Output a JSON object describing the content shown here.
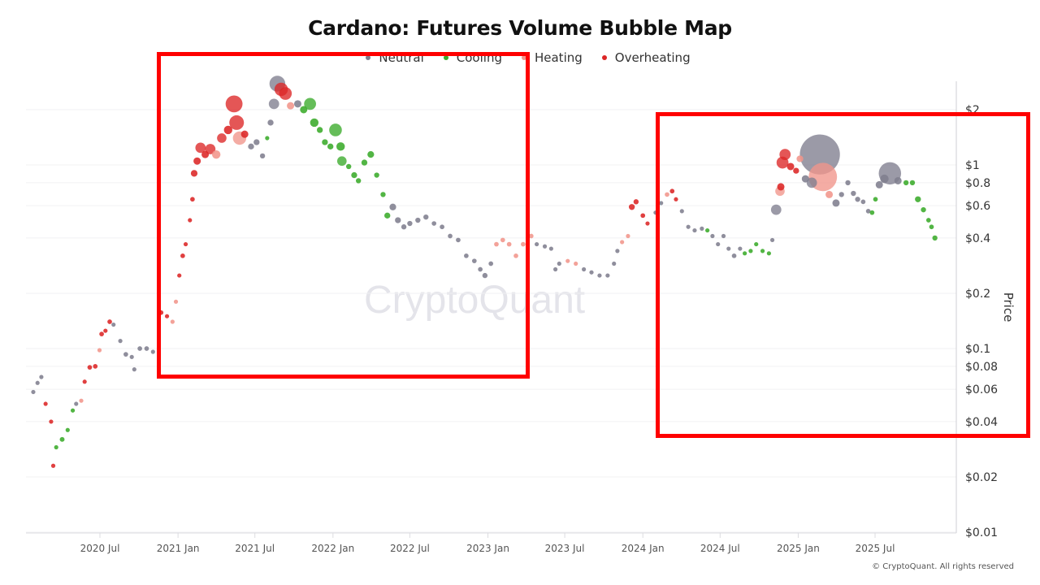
{
  "watermark": "CryptoQuant",
  "copyright": "© CryptoQuant. All rights reserved",
  "colors": {
    "Neutral": "#7f7e8e",
    "Cooling": "#3aab2a",
    "Heating": "#f1958b",
    "Overheating": "#dc2626",
    "highlight": "#ff0000"
  },
  "chart_data": {
    "type": "scatter",
    "title": "Cardano: Futures Volume Bubble Map",
    "ylabel": "Price",
    "xlabel": "",
    "yscale": "log",
    "ylim": [
      0.01,
      2.5
    ],
    "xlim": [
      "2020-01-10",
      "2025-12-20"
    ],
    "grid": "horizontal",
    "legend_position": "top",
    "legend": [
      "Neutral",
      "Cooling",
      "Heating",
      "Overheating"
    ],
    "x_ticks": [
      "2020 Jul",
      "2021 Jan",
      "2021 Jul",
      "2022 Jan",
      "2022 Jul",
      "2023 Jan",
      "2023 Jul",
      "2024 Jan",
      "2024 Jul",
      "2025 Jan",
      "2025 Jul"
    ],
    "x_tick_dates": [
      "2020-07-01",
      "2021-01-01",
      "2021-07-01",
      "2022-01-01",
      "2022-07-01",
      "2023-01-01",
      "2023-07-01",
      "2024-01-01",
      "2024-07-01",
      "2025-01-01",
      "2025-07-01"
    ],
    "y_ticks": [
      "$0.01",
      "$0.02",
      "$0.04",
      "$0.06",
      "$0.08",
      "$0.1",
      "$0.2",
      "$0.4",
      "$0.6",
      "$0.8",
      "$1",
      "$2"
    ],
    "y_tick_values": [
      0.01,
      0.02,
      0.04,
      0.06,
      0.08,
      0.1,
      0.2,
      0.4,
      0.6,
      0.8,
      1,
      2
    ],
    "point_fields": [
      "date",
      "price",
      "status",
      "relative_volume"
    ],
    "points": [
      [
        "2020-01-26",
        0.058,
        "Neutral",
        1
      ],
      [
        "2020-02-05",
        0.065,
        "Neutral",
        1
      ],
      [
        "2020-02-14",
        0.07,
        "Neutral",
        1
      ],
      [
        "2020-02-24",
        0.05,
        "Overheating",
        1
      ],
      [
        "2020-03-08",
        0.04,
        "Overheating",
        1
      ],
      [
        "2020-03-13",
        0.023,
        "Overheating",
        1
      ],
      [
        "2020-03-20",
        0.029,
        "Cooling",
        1
      ],
      [
        "2020-04-03",
        0.032,
        "Cooling",
        1.3
      ],
      [
        "2020-04-16",
        0.036,
        "Cooling",
        1
      ],
      [
        "2020-04-28",
        0.046,
        "Cooling",
        1
      ],
      [
        "2020-05-06",
        0.05,
        "Neutral",
        1
      ],
      [
        "2020-05-18",
        0.052,
        "Heating",
        1
      ],
      [
        "2020-05-26",
        0.066,
        "Overheating",
        1
      ],
      [
        "2020-06-07",
        0.079,
        "Overheating",
        1.2
      ],
      [
        "2020-06-20",
        0.08,
        "Overheating",
        1.2
      ],
      [
        "2020-06-30",
        0.098,
        "Heating",
        1
      ],
      [
        "2020-07-05",
        0.12,
        "Overheating",
        1.2
      ],
      [
        "2020-07-14",
        0.125,
        "Overheating",
        1
      ],
      [
        "2020-07-24",
        0.14,
        "Overheating",
        1.2
      ],
      [
        "2020-08-02",
        0.135,
        "Neutral",
        1
      ],
      [
        "2020-08-18",
        0.11,
        "Neutral",
        1
      ],
      [
        "2020-08-31",
        0.093,
        "Neutral",
        1.2
      ],
      [
        "2020-09-14",
        0.09,
        "Neutral",
        1
      ],
      [
        "2020-09-20",
        0.077,
        "Neutral",
        1
      ],
      [
        "2020-10-03",
        0.1,
        "Neutral",
        1.2
      ],
      [
        "2020-10-19",
        0.1,
        "Neutral",
        1.2
      ],
      [
        "2020-11-03",
        0.096,
        "Neutral",
        1
      ],
      [
        "2020-11-22",
        0.157,
        "Overheating",
        1.2
      ],
      [
        "2020-12-06",
        0.15,
        "Overheating",
        1
      ],
      [
        "2020-12-19",
        0.14,
        "Heating",
        1
      ],
      [
        "2020-12-27",
        0.18,
        "Heating",
        1
      ],
      [
        "2021-01-04",
        0.25,
        "Overheating",
        1
      ],
      [
        "2021-01-12",
        0.32,
        "Overheating",
        1.2
      ],
      [
        "2021-01-19",
        0.37,
        "Overheating",
        1
      ],
      [
        "2021-01-29",
        0.5,
        "Overheating",
        1
      ],
      [
        "2021-02-04",
        0.65,
        "Overheating",
        1.2
      ],
      [
        "2021-02-08",
        0.9,
        "Overheating",
        2.5
      ],
      [
        "2021-02-15",
        1.05,
        "Overheating",
        3
      ],
      [
        "2021-02-23",
        1.24,
        "Overheating",
        6
      ],
      [
        "2021-03-06",
        1.14,
        "Overheating",
        3
      ],
      [
        "2021-03-18",
        1.22,
        "Overheating",
        6
      ],
      [
        "2021-04-01",
        1.14,
        "Heating",
        4
      ],
      [
        "2021-04-14",
        1.4,
        "Overheating",
        5
      ],
      [
        "2021-04-29",
        1.55,
        "Overheating",
        4
      ],
      [
        "2021-05-13",
        2.15,
        "Overheating",
        16
      ],
      [
        "2021-05-19",
        1.7,
        "Overheating",
        12
      ],
      [
        "2021-05-26",
        1.4,
        "Heating",
        10
      ],
      [
        "2021-06-07",
        1.47,
        "Overheating",
        3
      ],
      [
        "2021-06-22",
        1.26,
        "Neutral",
        2
      ],
      [
        "2021-07-05",
        1.33,
        "Neutral",
        2
      ],
      [
        "2021-07-19",
        1.12,
        "Neutral",
        1.5
      ],
      [
        "2021-07-30",
        1.4,
        "Cooling",
        1
      ],
      [
        "2021-08-07",
        1.7,
        "Neutral",
        2
      ],
      [
        "2021-08-15",
        2.15,
        "Neutral",
        6
      ],
      [
        "2021-08-23",
        2.77,
        "Neutral",
        14
      ],
      [
        "2021-09-01",
        2.58,
        "Overheating",
        10
      ],
      [
        "2021-09-11",
        2.45,
        "Overheating",
        9
      ],
      [
        "2021-09-23",
        2.1,
        "Heating",
        3
      ],
      [
        "2021-10-10",
        2.15,
        "Neutral",
        3
      ],
      [
        "2021-10-24",
        2.0,
        "Cooling",
        3
      ],
      [
        "2021-11-08",
        2.15,
        "Cooling",
        8
      ],
      [
        "2021-11-18",
        1.7,
        "Cooling",
        4
      ],
      [
        "2021-12-01",
        1.55,
        "Cooling",
        2
      ],
      [
        "2021-12-13",
        1.33,
        "Cooling",
        2
      ],
      [
        "2021-12-26",
        1.26,
        "Cooling",
        2
      ],
      [
        "2022-01-07",
        1.55,
        "Cooling",
        9
      ],
      [
        "2022-01-19",
        1.26,
        "Cooling",
        4
      ],
      [
        "2022-01-22",
        1.05,
        "Cooling",
        5
      ],
      [
        "2022-02-07",
        0.98,
        "Cooling",
        1.5
      ],
      [
        "2022-02-20",
        0.88,
        "Cooling",
        2
      ],
      [
        "2022-03-02",
        0.82,
        "Cooling",
        1.5
      ],
      [
        "2022-03-16",
        1.03,
        "Cooling",
        2
      ],
      [
        "2022-03-31",
        1.14,
        "Cooling",
        2.5
      ],
      [
        "2022-04-14",
        0.88,
        "Cooling",
        1.5
      ],
      [
        "2022-04-29",
        0.69,
        "Cooling",
        1.5
      ],
      [
        "2022-05-09",
        0.53,
        "Cooling",
        2
      ],
      [
        "2022-05-22",
        0.59,
        "Neutral",
        2.5
      ],
      [
        "2022-06-03",
        0.5,
        "Neutral",
        2
      ],
      [
        "2022-06-17",
        0.46,
        "Neutral",
        1.5
      ],
      [
        "2022-07-01",
        0.48,
        "Neutral",
        1.5
      ],
      [
        "2022-07-20",
        0.5,
        "Neutral",
        1.5
      ],
      [
        "2022-08-08",
        0.52,
        "Neutral",
        1.5
      ],
      [
        "2022-08-27",
        0.48,
        "Neutral",
        1.2
      ],
      [
        "2022-09-15",
        0.46,
        "Neutral",
        1.2
      ],
      [
        "2022-10-04",
        0.41,
        "Neutral",
        1.2
      ],
      [
        "2022-10-23",
        0.39,
        "Neutral",
        1.2
      ],
      [
        "2022-11-11",
        0.32,
        "Neutral",
        1.2
      ],
      [
        "2022-11-30",
        0.3,
        "Neutral",
        1.2
      ],
      [
        "2022-12-14",
        0.27,
        "Neutral",
        1.2
      ],
      [
        "2022-12-25",
        0.25,
        "Neutral",
        1.5
      ],
      [
        "2023-01-08",
        0.29,
        "Neutral",
        1.2
      ],
      [
        "2023-01-21",
        0.37,
        "Heating",
        1.2
      ],
      [
        "2023-02-05",
        0.39,
        "Heating",
        1.2
      ],
      [
        "2023-02-20",
        0.37,
        "Heating",
        1.2
      ],
      [
        "2023-03-08",
        0.32,
        "Heating",
        1.2
      ],
      [
        "2023-03-25",
        0.37,
        "Heating",
        1.2
      ],
      [
        "2023-04-13",
        0.41,
        "Heating",
        1.2
      ],
      [
        "2023-04-26",
        0.37,
        "Neutral",
        1
      ],
      [
        "2023-05-15",
        0.36,
        "Neutral",
        1
      ],
      [
        "2023-05-30",
        0.35,
        "Neutral",
        1
      ],
      [
        "2023-06-09",
        0.27,
        "Neutral",
        1
      ],
      [
        "2023-06-18",
        0.29,
        "Neutral",
        1
      ],
      [
        "2023-07-08",
        0.3,
        "Heating",
        1
      ],
      [
        "2023-07-27",
        0.29,
        "Heating",
        1
      ],
      [
        "2023-08-15",
        0.27,
        "Neutral",
        1
      ],
      [
        "2023-09-02",
        0.26,
        "Neutral",
        1
      ],
      [
        "2023-09-21",
        0.25,
        "Neutral",
        1
      ],
      [
        "2023-10-10",
        0.25,
        "Neutral",
        1
      ],
      [
        "2023-10-25",
        0.29,
        "Neutral",
        1
      ],
      [
        "2023-11-02",
        0.34,
        "Neutral",
        1
      ],
      [
        "2023-11-13",
        0.38,
        "Heating",
        1
      ],
      [
        "2023-11-27",
        0.41,
        "Heating",
        1
      ],
      [
        "2023-12-06",
        0.59,
        "Overheating",
        2
      ],
      [
        "2023-12-16",
        0.63,
        "Overheating",
        1.5
      ],
      [
        "2024-01-01",
        0.53,
        "Overheating",
        1.2
      ],
      [
        "2024-01-12",
        0.48,
        "Overheating",
        1
      ],
      [
        "2024-01-31",
        0.55,
        "Neutral",
        1
      ],
      [
        "2024-02-13",
        0.62,
        "Neutral",
        1
      ],
      [
        "2024-02-27",
        0.69,
        "Heating",
        1.2
      ],
      [
        "2024-03-10",
        0.72,
        "Overheating",
        1.2
      ],
      [
        "2024-03-19",
        0.65,
        "Overheating",
        1
      ],
      [
        "2024-04-02",
        0.56,
        "Neutral",
        1
      ],
      [
        "2024-04-17",
        0.46,
        "Neutral",
        1
      ],
      [
        "2024-05-02",
        0.44,
        "Neutral",
        1
      ],
      [
        "2024-05-19",
        0.45,
        "Neutral",
        1
      ],
      [
        "2024-06-01",
        0.44,
        "Cooling",
        1
      ],
      [
        "2024-06-13",
        0.41,
        "Neutral",
        1
      ],
      [
        "2024-06-26",
        0.37,
        "Neutral",
        1
      ],
      [
        "2024-07-09",
        0.41,
        "Neutral",
        1
      ],
      [
        "2024-07-21",
        0.35,
        "Neutral",
        1
      ],
      [
        "2024-08-03",
        0.32,
        "Neutral",
        1.2
      ],
      [
        "2024-08-17",
        0.35,
        "Neutral",
        1
      ],
      [
        "2024-08-28",
        0.33,
        "Cooling",
        1
      ],
      [
        "2024-09-11",
        0.34,
        "Cooling",
        1
      ],
      [
        "2024-09-24",
        0.37,
        "Cooling",
        1
      ],
      [
        "2024-10-09",
        0.34,
        "Cooling",
        1
      ],
      [
        "2024-10-24",
        0.33,
        "Cooling",
        1
      ],
      [
        "2024-11-01",
        0.39,
        "Neutral",
        1
      ],
      [
        "2024-11-10",
        0.57,
        "Neutral",
        6
      ],
      [
        "2024-11-19",
        0.72,
        "Heating",
        5
      ],
      [
        "2024-11-21",
        0.76,
        "Overheating",
        3
      ],
      [
        "2024-11-25",
        1.03,
        "Overheating",
        8
      ],
      [
        "2024-12-01",
        1.14,
        "Overheating",
        7
      ],
      [
        "2024-12-14",
        0.98,
        "Overheating",
        3
      ],
      [
        "2024-12-27",
        0.93,
        "Overheating",
        2
      ],
      [
        "2025-01-05",
        1.08,
        "Heating",
        2.5
      ],
      [
        "2025-01-18",
        0.84,
        "Neutral",
        3
      ],
      [
        "2025-02-02",
        0.8,
        "Neutral",
        6
      ],
      [
        "2025-02-21",
        1.14,
        "Neutral",
        90
      ],
      [
        "2025-02-28",
        0.86,
        "Heating",
        45
      ],
      [
        "2025-03-15",
        0.69,
        "Heating",
        3
      ],
      [
        "2025-03-31",
        0.62,
        "Neutral",
        3
      ],
      [
        "2025-04-13",
        0.69,
        "Neutral",
        1.5
      ],
      [
        "2025-04-28",
        0.8,
        "Neutral",
        1.5
      ],
      [
        "2025-05-11",
        0.7,
        "Neutral",
        1.5
      ],
      [
        "2025-05-21",
        0.65,
        "Neutral",
        1.5
      ],
      [
        "2025-06-03",
        0.63,
        "Neutral",
        1.2
      ],
      [
        "2025-06-15",
        0.56,
        "Neutral",
        1.2
      ],
      [
        "2025-06-24",
        0.55,
        "Cooling",
        1.2
      ],
      [
        "2025-07-02",
        0.65,
        "Cooling",
        1.2
      ],
      [
        "2025-07-11",
        0.78,
        "Neutral",
        3
      ],
      [
        "2025-07-23",
        0.84,
        "Neutral",
        4
      ],
      [
        "2025-08-05",
        0.9,
        "Neutral",
        28
      ],
      [
        "2025-08-24",
        0.82,
        "Neutral",
        3
      ],
      [
        "2025-09-12",
        0.8,
        "Cooling",
        1.5
      ],
      [
        "2025-09-27",
        0.8,
        "Cooling",
        1.5
      ],
      [
        "2025-10-10",
        0.65,
        "Cooling",
        2
      ],
      [
        "2025-10-23",
        0.57,
        "Cooling",
        1.5
      ],
      [
        "2025-11-04",
        0.5,
        "Cooling",
        1.2
      ],
      [
        "2025-11-11",
        0.46,
        "Cooling",
        1.2
      ],
      [
        "2025-11-19",
        0.4,
        "Cooling",
        1.5
      ]
    ]
  }
}
